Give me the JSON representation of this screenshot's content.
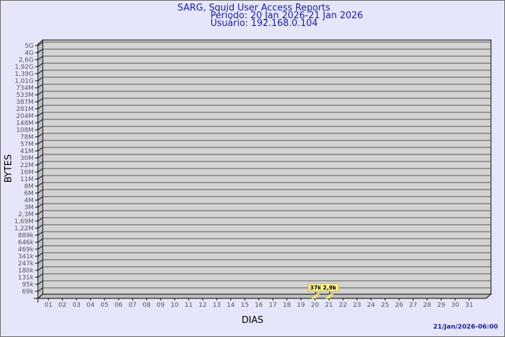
{
  "header": {
    "title": "SARG, Squid User Access Reports",
    "period": "Período: 20 Jan 2026-21 Jan 2026",
    "user": "Usuário: 192.168.0.104"
  },
  "footer": {
    "timestamp": "21/Jan/2026-06:00"
  },
  "chart_data": {
    "type": "bar",
    "title": "SARG, Squid User Access Reports",
    "xlabel": "DIAS",
    "ylabel": "BYTES",
    "y_scale": "log",
    "y_tick_labels": [
      "5G",
      "4G",
      "2,6G",
      "1,92G",
      "1,39G",
      "1,01G",
      "734M",
      "533M",
      "387M",
      "281M",
      "204M",
      "148M",
      "108M",
      "78M",
      "57M",
      "41M",
      "30M",
      "22M",
      "16M",
      "11M",
      "8M",
      "6M",
      "4M",
      "3M",
      "2,3M",
      "1,69M",
      "1,22M",
      "889k",
      "646k",
      "469k",
      "341k",
      "247k",
      "180k",
      "131k",
      "95k",
      "69k"
    ],
    "categories": [
      "01",
      "02",
      "03",
      "04",
      "05",
      "06",
      "07",
      "08",
      "09",
      "10",
      "11",
      "12",
      "13",
      "14",
      "15",
      "16",
      "17",
      "18",
      "19",
      "20",
      "21",
      "22",
      "23",
      "24",
      "25",
      "26",
      "27",
      "28",
      "29",
      "30",
      "31"
    ],
    "bars": [
      {
        "day": "20",
        "value": 37000,
        "label": "37k"
      },
      {
        "day": "21",
        "value": 2900,
        "label": "2,9k"
      }
    ],
    "grid": true,
    "colors": {
      "wall": "#d3d3d3",
      "bar": "#f5e27a",
      "label_bg": "#fff7a0",
      "title": "#1a1a9c",
      "background": "#e6e6fa"
    }
  }
}
